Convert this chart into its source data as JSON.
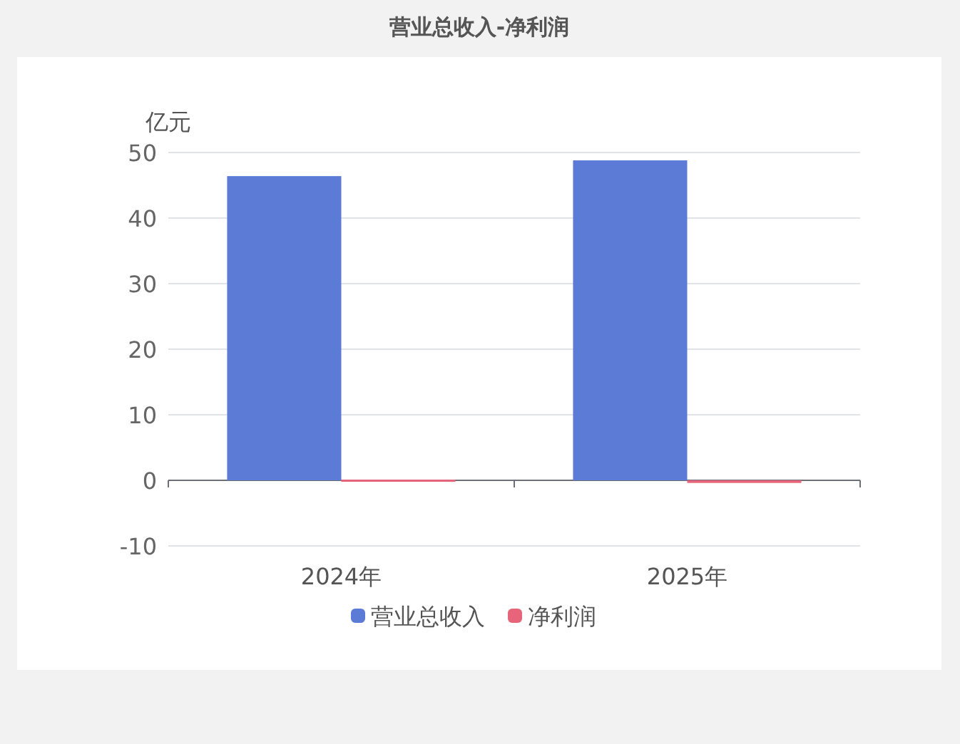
{
  "chart_data": {
    "type": "bar",
    "title": "营业总收入-净利润",
    "ylabel": "亿元",
    "categories": [
      "2024年",
      "2025年"
    ],
    "series": [
      {
        "name": "营业总收入",
        "color": "#5b7bd6",
        "values": [
          46.4,
          48.8
        ]
      },
      {
        "name": "净利润",
        "color": "#e8647a",
        "values": [
          0.1,
          -0.4
        ]
      }
    ],
    "ylim": [
      -10,
      50
    ],
    "yticks": [
      -10,
      0,
      10,
      20,
      30,
      40,
      50
    ],
    "grid": "y",
    "legend": "bottom"
  }
}
